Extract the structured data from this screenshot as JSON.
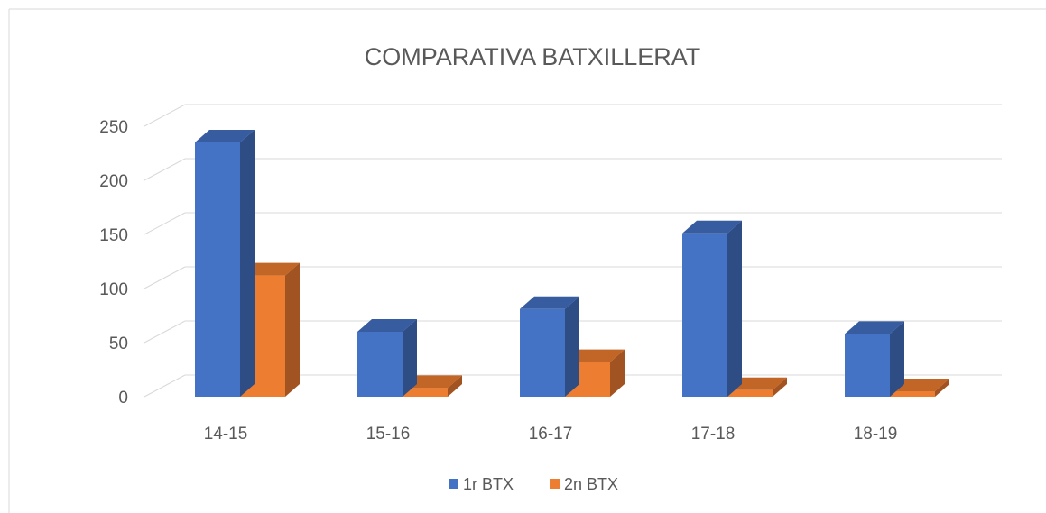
{
  "chart_data": {
    "type": "bar3d",
    "title": "COMPARATIVA BATXILLERAT",
    "categories": [
      "14-15",
      "15-16",
      "16-17",
      "17-18",
      "18-19"
    ],
    "series": [
      {
        "name": "1r BTX",
        "color": "#4472c4",
        "values": [
          235,
          60,
          81,
          151,
          58
        ]
      },
      {
        "name": "2n BTX",
        "color": "#ed7d31",
        "values": [
          112,
          8,
          32,
          6,
          5
        ]
      }
    ],
    "ylim": [
      0,
      250
    ],
    "yticks": [
      0,
      50,
      100,
      150,
      200,
      250
    ],
    "grid": true,
    "legend": "bottom"
  }
}
